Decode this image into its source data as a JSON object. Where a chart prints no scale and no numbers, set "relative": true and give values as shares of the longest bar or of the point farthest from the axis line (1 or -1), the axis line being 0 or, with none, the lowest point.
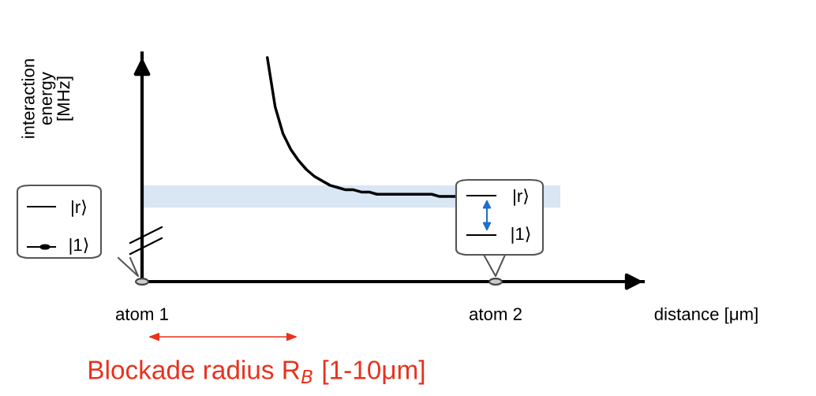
{
  "chart_data": {
    "type": "line",
    "relative": true,
    "color": "#000000",
    "xlabel": "distance [μm]",
    "ylabel": "interaction\nenergy\n[MHz]",
    "categories": [
      null,
      null,
      null,
      null,
      null,
      null,
      null,
      null,
      null,
      null,
      null,
      null,
      null,
      null,
      null,
      null,
      null,
      null,
      null,
      null,
      null,
      null,
      null,
      null,
      null,
      null,
      null,
      null,
      null,
      null,
      null,
      null,
      null,
      null,
      null,
      null,
      null,
      null,
      null,
      null,
      null,
      null,
      null,
      null,
      null,
      null,
      null,
      null,
      null,
      null,
      null,
      null,
      null,
      null,
      null,
      null,
      null,
      null,
      null,
      null,
      null,
      null,
      null,
      null
    ],
    "values": [
      null,
      null,
      null,
      null,
      null,
      null,
      null,
      null,
      null,
      null,
      null,
      null,
      null,
      null,
      null,
      null,
      1.0,
      0.78,
      0.66,
      0.59,
      0.54,
      0.5,
      0.47,
      0.45,
      0.43,
      0.42,
      0.41,
      0.41,
      0.4,
      0.4,
      0.39,
      0.39,
      0.39,
      0.39,
      0.39,
      0.39,
      0.39,
      0.39,
      0.38,
      0.38,
      0.38,
      null,
      null,
      null,
      null,
      null,
      null,
      null,
      null,
      null,
      null,
      null,
      null,
      null,
      null,
      null,
      null,
      null,
      null,
      null,
      null,
      null,
      null,
      null
    ],
    "bands": [
      {
        "axis": "y",
        "from": 0.33,
        "to": 0.43,
        "color": "#c9dcf0"
      }
    ],
    "annotations": [
      "atom 1",
      "atom 2",
      "|r⟩",
      "|1⟩",
      "|r⟩",
      "|1⟩",
      "Blockade radius R$_{B}$ [1-10μm]"
    ]
  }
}
